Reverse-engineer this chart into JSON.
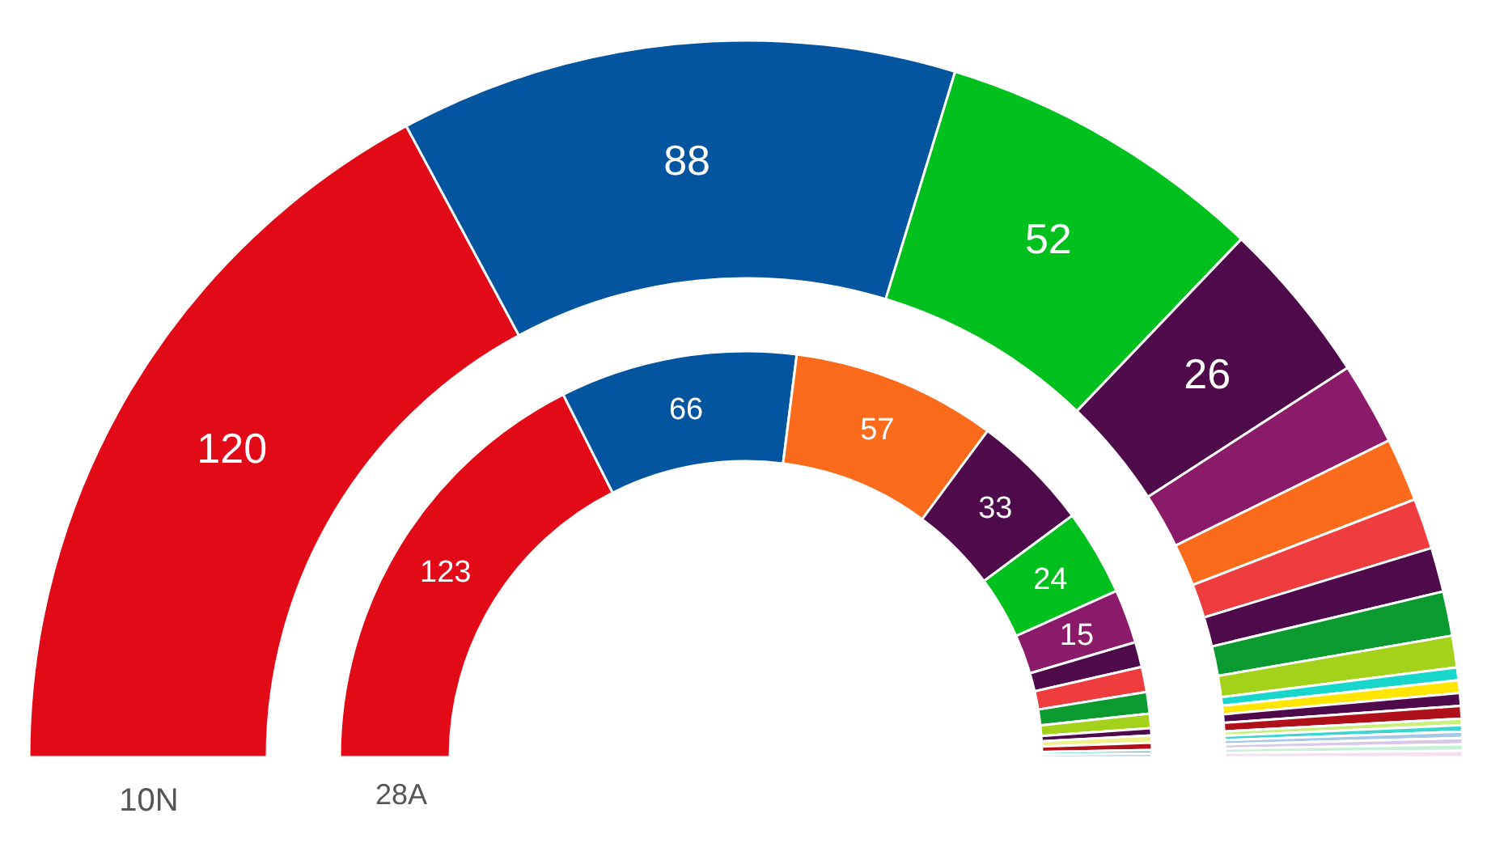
{
  "chart_data": {
    "type": "donut",
    "series": [
      {
        "name": "10N",
        "values": [
          120,
          88,
          52,
          26,
          13,
          10,
          8,
          7,
          7,
          5,
          2,
          2,
          2,
          2,
          1,
          1,
          1,
          1,
          1,
          1
        ],
        "value_labels": [
          "120",
          "88",
          "52",
          "26",
          null,
          null,
          null,
          null,
          null,
          null,
          null,
          null,
          null,
          null,
          null,
          null,
          null,
          null,
          null,
          null
        ],
        "colors": [
          "#e30a17",
          "#0455a0",
          "#00c01e",
          "#4e0a4a",
          "#8c1a6a",
          "#fb6b1b",
          "#ef3c3f",
          "#4e0a4a",
          "#0a9a30",
          "#a4d21a",
          "#19d6cd",
          "#ffe500",
          "#4e0a4a",
          "#b0101a",
          "#c8f07a",
          "#3cd6d0",
          "#a6c8e8",
          "#d8c8e8",
          "#c8f0d8",
          "#f0e0f0"
        ]
      },
      {
        "name": "28A",
        "values": [
          123,
          66,
          57,
          33,
          24,
          15,
          7,
          7,
          6,
          4,
          2,
          2,
          2,
          1,
          1
        ],
        "value_labels": [
          "123",
          "66",
          "57",
          "33",
          "24",
          "15",
          null,
          null,
          null,
          null,
          null,
          null,
          null,
          null,
          null
        ],
        "colors": [
          "#e30a17",
          "#0455a0",
          "#fb6b1b",
          "#4e0a4a",
          "#00c01e",
          "#8c1a6a",
          "#4e0a4a",
          "#ef3c3f",
          "#0a9a30",
          "#a4d21a",
          "#4e0a4a",
          "#f0f08a",
          "#b0101a",
          "#19d6cd",
          "#a6c8e8"
        ]
      }
    ]
  }
}
